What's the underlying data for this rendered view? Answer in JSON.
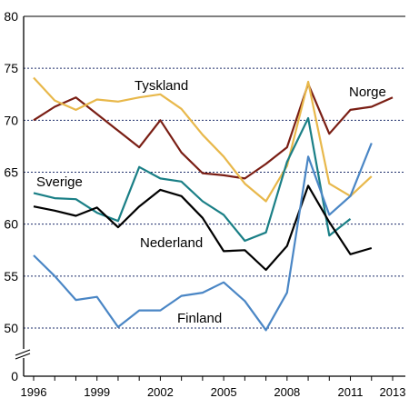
{
  "chart_data": {
    "type": "line",
    "title": "",
    "xlabel": "",
    "ylabel": "",
    "ylim": [
      0,
      80
    ],
    "axis_break": true,
    "y_ticks": [
      0,
      50,
      55,
      60,
      65,
      70,
      75,
      80
    ],
    "x_ticks": [
      1996,
      1999,
      2002,
      2005,
      2008,
      2011,
      2013
    ],
    "grid": "horizontal dotted",
    "legend": "inline labels",
    "x": [
      1996,
      1997,
      1998,
      1999,
      2000,
      2001,
      2002,
      2003,
      2004,
      2005,
      2006,
      2007,
      2008,
      2009,
      2010,
      2011,
      2012,
      2013
    ],
    "series": [
      {
        "name": "Norge",
        "color": "#7a1e14",
        "values": [
          70.0,
          71.3,
          72.2,
          70.6,
          69.0,
          67.4,
          70.0,
          66.9,
          64.9,
          64.7,
          64.4,
          65.8,
          67.4,
          73.5,
          68.7,
          71.0,
          71.3,
          72.2
        ]
      },
      {
        "name": "Tyskland",
        "color": "#e8b84b",
        "values": [
          74.1,
          71.9,
          71.0,
          72.0,
          71.8,
          72.2,
          72.5,
          71.1,
          68.6,
          66.5,
          63.9,
          62.2,
          65.6,
          73.7,
          63.9,
          62.7,
          64.6,
          null
        ]
      },
      {
        "name": "Sverige",
        "color": "#1a7f86",
        "values": [
          63.0,
          62.5,
          62.4,
          61.1,
          60.3,
          65.5,
          64.4,
          64.1,
          62.2,
          60.9,
          58.4,
          59.2,
          66.0,
          70.2,
          58.9,
          60.5,
          null,
          null
        ]
      },
      {
        "name": "Nederland",
        "color": "#000000",
        "values": [
          61.7,
          61.3,
          60.8,
          61.6,
          59.7,
          61.7,
          63.3,
          62.7,
          60.6,
          57.4,
          57.5,
          55.6,
          57.9,
          63.7,
          60.2,
          57.1,
          57.7,
          null
        ]
      },
      {
        "name": "Finland",
        "color": "#4a86c5",
        "values": [
          57.0,
          55.0,
          52.7,
          53.0,
          50.1,
          51.7,
          51.7,
          53.1,
          53.4,
          54.4,
          52.6,
          49.8,
          53.4,
          66.5,
          60.9,
          62.7,
          67.8,
          null
        ]
      }
    ],
    "annotations": [
      "Tyskland",
      "Norge",
      "Sverige",
      "Nederland",
      "Finland"
    ]
  }
}
